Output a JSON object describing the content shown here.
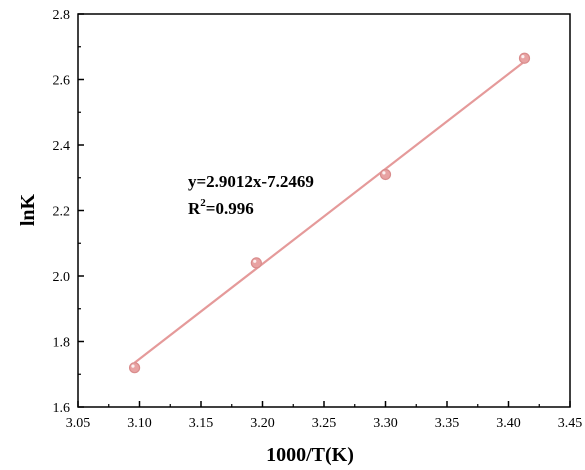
{
  "chart_data": {
    "type": "scatter",
    "title": "",
    "xlabel": "1000/T(K)",
    "ylabel": "lnK",
    "xlim": [
      3.05,
      3.45
    ],
    "ylim": [
      1.6,
      2.8
    ],
    "xticks": [
      "3.05",
      "3.10",
      "3.15",
      "3.20",
      "3.25",
      "3.30",
      "3.35",
      "3.40",
      "3.45"
    ],
    "yticks": [
      "1.6",
      "1.8",
      "2.0",
      "2.2",
      "2.4",
      "2.6",
      "2.8"
    ],
    "grid": false,
    "series": [
      {
        "x": [
          3.096,
          3.195,
          3.3,
          3.413
        ],
        "y": [
          1.72,
          2.04,
          2.31,
          2.665
        ]
      }
    ],
    "fit_line": {
      "slope": 2.9012,
      "intercept": -7.2469,
      "x_range": [
        3.096,
        3.413
      ]
    },
    "colors": {
      "marker": "#e8a3a3",
      "marker_edge": "#d98c8c",
      "line": "#e59a9a"
    },
    "annotation": {
      "equation": "y=2.9012x-7.2469",
      "r2_prefix": "R",
      "r2_sup": "2",
      "r2_value": "=0.996"
    }
  }
}
